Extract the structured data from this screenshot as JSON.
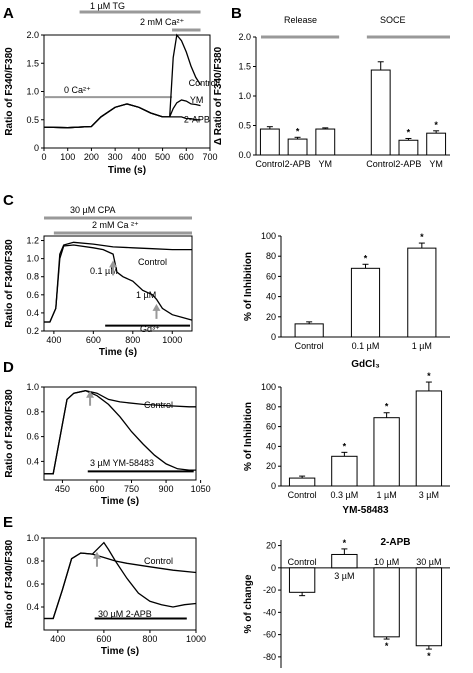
{
  "panels": [
    {
      "letter": "A"
    },
    {
      "letter": "B"
    },
    {
      "letter": "C"
    },
    {
      "letter": "D"
    },
    {
      "letter": "E"
    }
  ],
  "colors": {
    "line": "#000000",
    "bar_fill": "#ffffff",
    "bar_edge": "#000000",
    "bracket": "#999999",
    "arrow": "#999999"
  },
  "chart_data": [
    {
      "id": "A",
      "type": "line",
      "xlabel": "Time (s)",
      "ylabel": "Ratio of F340/F380",
      "xlim": [
        0,
        700
      ],
      "ylim": [
        0,
        2.0
      ],
      "xticks": [
        0,
        100,
        200,
        300,
        400,
        500,
        600,
        700
      ],
      "yticks": [
        0,
        0.5,
        1.0,
        1.5,
        2.0
      ],
      "ytick_labels": [
        "0",
        "0.5",
        "1.0",
        "1.5",
        "2.0"
      ],
      "annotations": [
        "1 µM TG",
        "2 mM Ca²⁺",
        "0 Ca²⁺"
      ],
      "series": [
        {
          "name": "Control",
          "x": [
            0,
            100,
            200,
            240,
            300,
            350,
            400,
            450,
            500,
            530,
            545,
            560,
            580,
            600,
            620,
            640,
            660
          ],
          "y": [
            0.37,
            0.36,
            0.38,
            0.55,
            0.72,
            0.78,
            0.72,
            0.62,
            0.55,
            0.55,
            1.6,
            2.0,
            1.9,
            1.7,
            1.45,
            1.25,
            1.12
          ]
        },
        {
          "name": "YM",
          "x": [
            0,
            100,
            200,
            240,
            300,
            350,
            400,
            450,
            500,
            530,
            545,
            560,
            580,
            600,
            620,
            640,
            660
          ],
          "y": [
            0.37,
            0.36,
            0.38,
            0.55,
            0.72,
            0.78,
            0.72,
            0.62,
            0.55,
            0.55,
            0.7,
            0.8,
            0.85,
            0.83,
            0.78,
            0.77,
            0.75
          ]
        },
        {
          "name": "2-APB",
          "x": [
            0,
            100,
            200,
            240,
            300,
            350,
            400,
            450,
            500,
            530,
            545,
            560,
            580,
            600,
            620,
            640,
            660
          ],
          "y": [
            0.37,
            0.36,
            0.38,
            0.55,
            0.72,
            0.78,
            0.72,
            0.62,
            0.55,
            0.55,
            0.55,
            0.55,
            0.55,
            0.52,
            0.52,
            0.5,
            0.5
          ]
        }
      ]
    },
    {
      "id": "B",
      "type": "bar",
      "ylabel": "Δ Ratio of F340/F380",
      "ylim": [
        0,
        2.0
      ],
      "yticks": [
        0,
        0.5,
        1.0,
        1.5,
        2.0
      ],
      "ytick_labels": [
        "0.0",
        "0.5",
        "1.0",
        "1.5",
        "2.0"
      ],
      "categories": [
        "Control",
        "2-APB",
        "YM",
        "Control",
        "2-APB",
        "YM"
      ],
      "values": [
        0.44,
        0.27,
        0.44,
        1.44,
        0.25,
        0.37
      ],
      "errors": [
        0.04,
        0.03,
        0.02,
        0.14,
        0.03,
        0.04
      ],
      "significant": [
        false,
        true,
        false,
        false,
        true,
        true
      ],
      "groups": [
        "Release",
        "SOCE"
      ]
    },
    {
      "id": "C-trace",
      "type": "line",
      "xlabel": "Time (s)",
      "ylabel": "Ratio of F340/F380",
      "xlim": [
        350,
        1100
      ],
      "ylim": [
        0.2,
        1.25
      ],
      "xticks": [
        400,
        600,
        800,
        1000
      ],
      "yticks": [
        0.2,
        0.4,
        0.6,
        0.8,
        1.0,
        1.2
      ],
      "ytick_labels": [
        "0.2",
        "0.4",
        "0.6",
        "0.8",
        "1.0",
        "1.2"
      ],
      "annotations": [
        "30 µM CPA",
        "2 mM Ca ²⁺",
        "0.1 µM",
        "1 µM",
        "Gd³⁺"
      ],
      "series": [
        {
          "name": "Control",
          "x": [
            350,
            380,
            410,
            430,
            450,
            500,
            600,
            700,
            800,
            900,
            1000,
            1100
          ],
          "y": [
            0.3,
            0.3,
            0.45,
            1.05,
            1.15,
            1.18,
            1.16,
            1.13,
            1.12,
            1.11,
            1.1,
            1.1
          ]
        },
        {
          "name": "GdCl3",
          "x": [
            350,
            380,
            410,
            430,
            450,
            500,
            600,
            650,
            700,
            720,
            750,
            800,
            850,
            900,
            920,
            950,
            1000,
            1050,
            1100
          ],
          "y": [
            0.3,
            0.3,
            0.45,
            1.0,
            1.14,
            1.15,
            1.12,
            1.1,
            1.05,
            0.85,
            0.8,
            0.75,
            0.65,
            0.6,
            0.55,
            0.45,
            0.38,
            0.35,
            0.32
          ]
        }
      ]
    },
    {
      "id": "C-bar",
      "type": "bar",
      "xlabel": "GdCl₃",
      "ylabel": "% of Inhibition",
      "ylim": [
        0,
        100
      ],
      "yticks": [
        0,
        20,
        40,
        60,
        80,
        100
      ],
      "categories": [
        "Control",
        "0.1 µM",
        "1 µM"
      ],
      "values": [
        13,
        68,
        88
      ],
      "errors": [
        2,
        4,
        5
      ],
      "significant": [
        false,
        true,
        true
      ]
    },
    {
      "id": "D-trace",
      "type": "line",
      "xlabel": "Time (s)",
      "ylabel": "Ratio of F340/F380",
      "xlim": [
        370,
        1030
      ],
      "ylim": [
        0.25,
        1.0
      ],
      "xticks": [
        450,
        600,
        750,
        900,
        1050
      ],
      "yticks": [
        0.4,
        0.6,
        0.8,
        1.0
      ],
      "ytick_labels": [
        "0.4",
        "0.6",
        "0.8",
        "1.0"
      ],
      "annotations": [
        "Control",
        "3 µM YM-58483"
      ],
      "series": [
        {
          "name": "Control",
          "x": [
            370,
            410,
            440,
            470,
            500,
            550,
            600,
            650,
            700,
            800,
            900,
            1000,
            1030
          ],
          "y": [
            0.3,
            0.3,
            0.6,
            0.9,
            0.95,
            0.97,
            0.95,
            0.9,
            0.88,
            0.86,
            0.85,
            0.84,
            0.84
          ]
        },
        {
          "name": "YM-58483",
          "x": [
            370,
            410,
            440,
            470,
            500,
            550,
            600,
            650,
            700,
            750,
            800,
            850,
            900,
            950,
            1000,
            1030
          ],
          "y": [
            0.3,
            0.3,
            0.6,
            0.9,
            0.95,
            0.97,
            0.93,
            0.86,
            0.76,
            0.64,
            0.54,
            0.45,
            0.38,
            0.34,
            0.33,
            0.33
          ]
        }
      ]
    },
    {
      "id": "D-bar",
      "type": "bar",
      "xlabel": "YM-58483",
      "ylabel": "% of Inhibition",
      "ylim": [
        0,
        100
      ],
      "yticks": [
        0,
        20,
        40,
        60,
        80,
        100
      ],
      "categories": [
        "Control",
        "0.3 µM",
        "1 µM",
        "3 µM"
      ],
      "values": [
        8,
        30,
        69,
        96
      ],
      "errors": [
        2,
        4,
        5,
        9
      ],
      "significant": [
        false,
        true,
        true,
        true
      ]
    },
    {
      "id": "E-trace",
      "type": "line",
      "xlabel": "Time (s)",
      "ylabel": "Ratio of F340/F380",
      "xlim": [
        340,
        1000
      ],
      "ylim": [
        0.2,
        1.0
      ],
      "xticks": [
        400,
        600,
        800,
        1000
      ],
      "yticks": [
        0.4,
        0.6,
        0.8,
        1.0
      ],
      "ytick_labels": [
        "0.4",
        "0.6",
        "0.8",
        "1.0"
      ],
      "annotations": [
        "Control",
        "30 µM 2-APB"
      ],
      "series": [
        {
          "name": "Control",
          "x": [
            340,
            380,
            420,
            460,
            500,
            550,
            600,
            650,
            700,
            800,
            900,
            1000
          ],
          "y": [
            0.3,
            0.3,
            0.55,
            0.82,
            0.87,
            0.86,
            0.83,
            0.8,
            0.78,
            0.75,
            0.72,
            0.7
          ]
        },
        {
          "name": "2-APB",
          "x": [
            340,
            380,
            420,
            460,
            500,
            550,
            580,
            600,
            620,
            650,
            700,
            750,
            800,
            850,
            900,
            950,
            1000
          ],
          "y": [
            0.3,
            0.3,
            0.55,
            0.82,
            0.87,
            0.86,
            0.92,
            0.96,
            0.9,
            0.8,
            0.65,
            0.52,
            0.45,
            0.42,
            0.4,
            0.42,
            0.43
          ]
        }
      ]
    },
    {
      "id": "E-bar",
      "type": "bar",
      "title": "2-APB",
      "ylabel": "% of change",
      "ylim": [
        -90,
        25
      ],
      "yticks": [
        -80,
        -60,
        -40,
        -20,
        0,
        20
      ],
      "categories": [
        "Control",
        "3 µM",
        "10 µM",
        "30 µM"
      ],
      "values": [
        -22,
        12,
        -62,
        -70
      ],
      "errors": [
        3,
        5,
        2,
        3
      ],
      "significant": [
        false,
        true,
        true,
        true
      ]
    }
  ]
}
